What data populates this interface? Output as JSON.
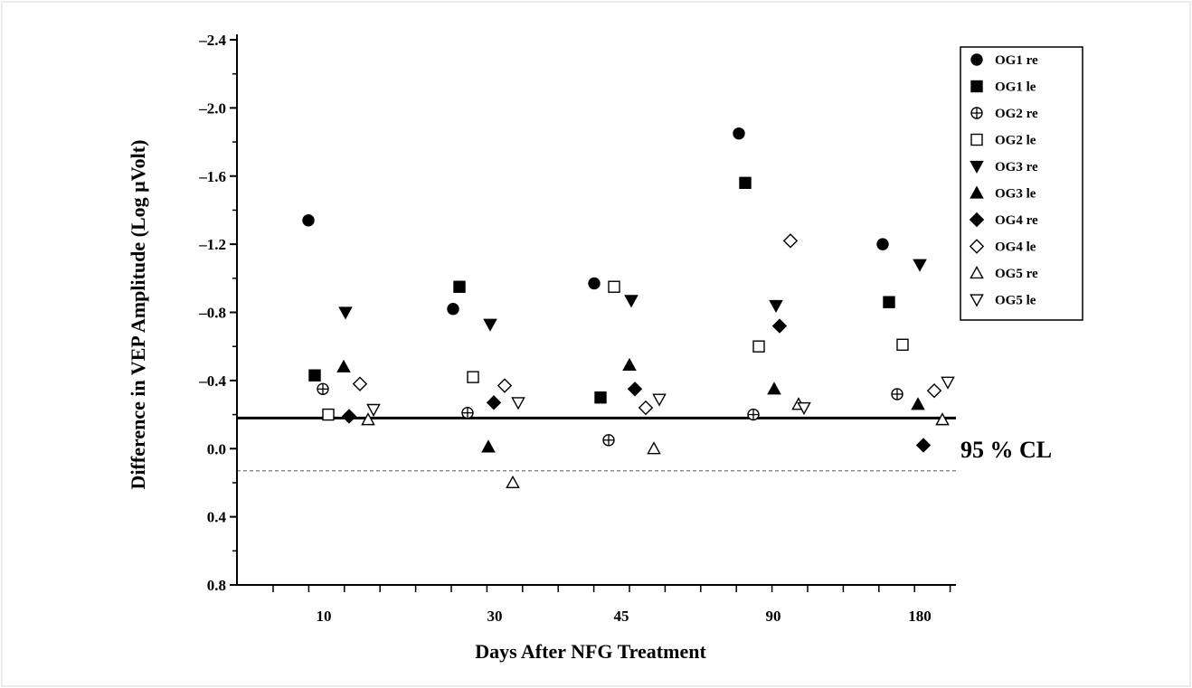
{
  "chart_data": {
    "type": "scatter",
    "title": "",
    "xlabel": "Days After NFG Treatment",
    "ylabel": "Difference in VEP Amplitude (Log µVolt)",
    "categories": [
      "10",
      "30",
      "45",
      "90",
      "180"
    ],
    "y_axis": {
      "min": -2.4,
      "max": 0.8,
      "inverted": true,
      "major_ticks": [
        -2.4,
        -2.0,
        -1.6,
        -1.2,
        -0.8,
        -0.4,
        0.0,
        0.4,
        0.8
      ],
      "tick_labels": [
        "–2.4",
        "–2.0",
        "–1.6",
        "–1.2",
        "–0.8",
        "–0.4",
        "0.0",
        "0.4",
        "0.8"
      ]
    },
    "reference_lines": [
      {
        "value": -0.18,
        "style": "solid",
        "label": "95 % CL"
      },
      {
        "value": 0.13,
        "style": "dashed"
      }
    ],
    "grid": false,
    "legend_position": "top-right",
    "series": [
      {
        "name": "OG1 re",
        "marker": "circle",
        "filled": true,
        "values": [
          -1.34,
          -0.82,
          -0.97,
          -1.85,
          -1.2
        ]
      },
      {
        "name": "OG1 le",
        "marker": "square",
        "filled": true,
        "values": [
          -0.43,
          -0.95,
          -0.3,
          -1.56,
          -0.86
        ]
      },
      {
        "name": "OG2 re",
        "marker": "circle-plus",
        "filled": false,
        "values": [
          -0.35,
          -0.21,
          -0.05,
          -0.2,
          -0.32
        ]
      },
      {
        "name": "OG2 le",
        "marker": "square",
        "filled": false,
        "values": [
          -0.2,
          -0.42,
          -0.95,
          -0.6,
          -0.61
        ]
      },
      {
        "name": "OG3 re",
        "marker": "triangle-down",
        "filled": true,
        "values": [
          -0.8,
          -0.73,
          -0.87,
          -0.84,
          -1.08
        ]
      },
      {
        "name": "OG3 le",
        "marker": "triangle-up",
        "filled": true,
        "values": [
          -0.48,
          -0.01,
          -0.49,
          -0.35,
          -0.26
        ]
      },
      {
        "name": "OG4 re",
        "marker": "diamond",
        "filled": true,
        "values": [
          -0.19,
          -0.27,
          -0.35,
          -0.72,
          -0.02
        ]
      },
      {
        "name": "OG4 le",
        "marker": "diamond",
        "filled": false,
        "values": [
          -0.38,
          -0.37,
          -0.24,
          -1.22,
          -0.34
        ]
      },
      {
        "name": "OG5 re",
        "marker": "triangle-up",
        "filled": false,
        "values": [
          -0.17,
          0.2,
          0.0,
          -0.26,
          -0.17
        ]
      },
      {
        "name": "OG5 le",
        "marker": "triangle-down",
        "filled": false,
        "values": [
          -0.23,
          -0.27,
          -0.29,
          -0.24,
          -0.39
        ]
      }
    ]
  }
}
